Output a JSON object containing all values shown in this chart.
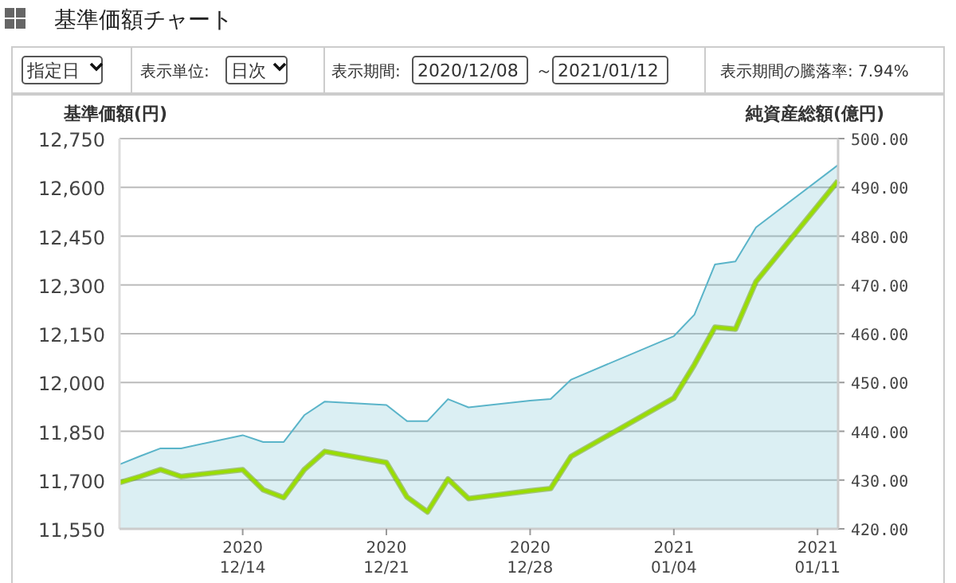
{
  "chart_data": {
    "type": "area",
    "title": "基準価額チャート",
    "ylabel": "基準価額(円)",
    "y2label": "純資産総額(億円)",
    "annotations": [
      "指定日",
      "表示単位:",
      "日次",
      "表示期間:",
      "2020/12/08",
      "～",
      "2021/01/12",
      "表示期間の騰落率: 7.94%"
    ],
    "x": [
      "2020-12-08",
      "2020-12-09",
      "2020-12-10",
      "2020-12-11",
      "2020-12-14",
      "2020-12-15",
      "2020-12-16",
      "2020-12-17",
      "2020-12-18",
      "2020-12-21",
      "2020-12-22",
      "2020-12-23",
      "2020-12-24",
      "2020-12-25",
      "2020-12-28",
      "2020-12-29",
      "2020-12-30",
      "2021-01-04",
      "2021-01-05",
      "2021-01-06",
      "2021-01-07",
      "2021-01-08",
      "2021-01-12"
    ],
    "series": [
      {
        "axis": "y2",
        "color": "#5ab4c9",
        "values": [
          433.2,
          434.9,
          436.5,
          436.5,
          439.2,
          437.8,
          437.8,
          443.3,
          446.1,
          445.4,
          442.1,
          442.1,
          446.6,
          444.9,
          446.3,
          446.6,
          450.6,
          459.5,
          463.9,
          474.2,
          474.8,
          481.8,
          494.6
        ]
      },
      {
        "type": "line",
        "axis": "y",
        "color": "#99dd00",
        "values": [
          11692,
          11711,
          11732,
          11711,
          11732,
          11670,
          11646,
          11732,
          11788,
          11754,
          11648,
          11602,
          11703,
          11643,
          11667,
          11674,
          11773,
          11952,
          12055,
          12170,
          12164,
          12310,
          12620
        ]
      }
    ],
    "xlim": [
      "2020-12-08",
      "2021-01-12"
    ],
    "xticks": [
      {
        "value": "2020-12-14",
        "label": "2020\n12/14"
      },
      {
        "value": "2020-12-21",
        "label": "2020\n12/21"
      },
      {
        "value": "2020-12-28",
        "label": "2020\n12/28"
      },
      {
        "value": "2021-01-04",
        "label": "2021\n01/04"
      },
      {
        "value": "2021-01-11",
        "label": "2021\n01/11"
      }
    ],
    "ylim": [
      11550,
      12750
    ],
    "yticks": [
      {
        "value": 11550,
        "label": "11,550"
      },
      {
        "value": 11700,
        "label": "11,700"
      },
      {
        "value": 11850,
        "label": "11,850"
      },
      {
        "value": 12000,
        "label": "12,000"
      },
      {
        "value": 12150,
        "label": "12,150"
      },
      {
        "value": 12300,
        "label": "12,300"
      },
      {
        "value": 12450,
        "label": "12,450"
      },
      {
        "value": 12600,
        "label": "12,600"
      },
      {
        "value": 12750,
        "label": "12,750"
      }
    ],
    "y2lim": [
      420,
      500
    ],
    "y2ticks": [
      {
        "value": 420,
        "label": "420.00"
      },
      {
        "value": 430,
        "label": "430.00"
      },
      {
        "value": 440,
        "label": "440.00"
      },
      {
        "value": 450,
        "label": "450.00"
      },
      {
        "value": 460,
        "label": "460.00"
      },
      {
        "value": 470,
        "label": "470.00"
      },
      {
        "value": 480,
        "label": "480.00"
      },
      {
        "value": 490,
        "label": "490.00"
      },
      {
        "value": 500,
        "label": "500.00"
      }
    ],
    "grid": "y",
    "marker": "none"
  }
}
